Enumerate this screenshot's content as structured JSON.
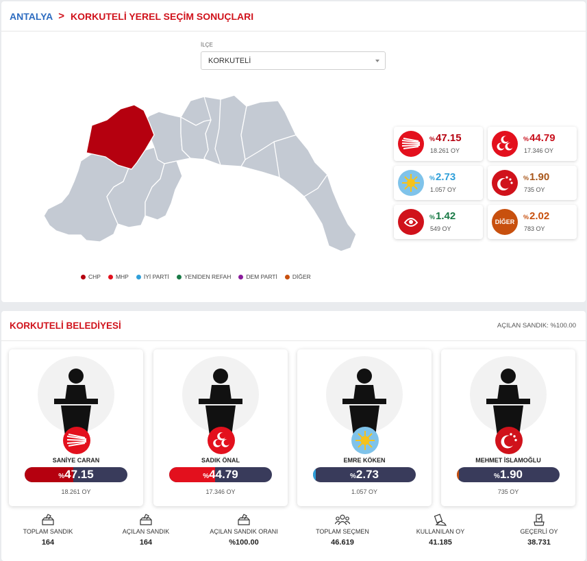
{
  "breadcrumb": {
    "root": "ANTALYA",
    "separator": ">",
    "current": "KORKUTELİ YEREL SEÇİM SONUÇLARI"
  },
  "ilce": {
    "label": "İLÇE",
    "selected": "KORKUTELİ"
  },
  "legend": [
    {
      "label": "CHP",
      "color": "#b5000f"
    },
    {
      "label": "MHP",
      "color": "#e3101d"
    },
    {
      "label": "İYİ PARTİ",
      "color": "#2f9fd9"
    },
    {
      "label": "YENİDEN REFAH",
      "color": "#197a46"
    },
    {
      "label": "DEM PARTİ",
      "color": "#8a1c9c"
    },
    {
      "label": "DİĞER",
      "color": "#c8500e"
    }
  ],
  "party_results": [
    {
      "party": "CHP",
      "percent_symbol": "%",
      "percent": "47.15",
      "votes": "18.261 OY",
      "color": "#b5000f",
      "icon": "chp-six-arrows-icon"
    },
    {
      "party": "MHP",
      "percent_symbol": "%",
      "percent": "44.79",
      "votes": "17.346 OY",
      "color": "#c8101c",
      "icon": "mhp-three-crescents-icon"
    },
    {
      "party": "İYİ PARTİ",
      "percent_symbol": "%",
      "percent": "2.73",
      "votes": "1.057 OY",
      "color": "#2f9fd9",
      "icon": "iyi-sun-icon"
    },
    {
      "party": "BBP",
      "percent_symbol": "%",
      "percent": "1.90",
      "votes": "735 OY",
      "color": "#a8571b",
      "icon": "crescent-stars-icon"
    },
    {
      "party": "YENİDEN REFAH",
      "percent_symbol": "%",
      "percent": "1.42",
      "votes": "549 OY",
      "color": "#197a46",
      "icon": "yeniden-refah-icon"
    },
    {
      "party": "DİĞER",
      "logo_text": "DİĞER",
      "percent_symbol": "%",
      "percent": "2.02",
      "votes": "783 OY",
      "color": "#c8500e",
      "icon": "diger-badge-icon"
    }
  ],
  "municipality": {
    "title": "KORKUTELİ BELEDİYESİ",
    "opened_boxes": "AÇILAN SANDIK: %100.00",
    "candidates": [
      {
        "name": "SANİYE CARAN",
        "percent_symbol": "%",
        "percent": "47.15",
        "share": 0.4715,
        "votes": "18.261 OY",
        "color": "#b5000f",
        "icon": "chp-six-arrows-icon"
      },
      {
        "name": "SADIK ÖNAL",
        "percent_symbol": "%",
        "percent": "44.79",
        "share": 0.4479,
        "votes": "17.346 OY",
        "color": "#e3101d",
        "icon": "mhp-three-crescents-icon"
      },
      {
        "name": "EMRE KÖKEN",
        "percent_symbol": "%",
        "percent": "2.73",
        "share": 0.0273,
        "votes": "1.057 OY",
        "color": "#2f9fd9",
        "icon": "iyi-sun-icon"
      },
      {
        "name": "MEHMET İSLAMOĞLU",
        "percent_symbol": "%",
        "percent": "1.90",
        "share": 0.019,
        "votes": "735 OY",
        "color": "#c8500e",
        "icon": "crescent-stars-icon"
      }
    ],
    "stats": [
      {
        "label": "TOPLAM SANDIK",
        "value": "164",
        "icon": "ballot-box-icon"
      },
      {
        "label": "AÇILAN SANDIK",
        "value": "164",
        "icon": "ballot-box-icon"
      },
      {
        "label": "AÇILAN SANDIK ORANI",
        "value": "%100.00",
        "icon": "ballot-box-icon"
      },
      {
        "label": "TOPLAM SEÇMEN",
        "value": "46.619",
        "icon": "people-icon"
      },
      {
        "label": "KULLANILAN OY",
        "value": "41.185",
        "icon": "vote-hand-icon"
      },
      {
        "label": "GEÇERLİ OY",
        "value": "38.731",
        "icon": "valid-vote-icon"
      }
    ]
  },
  "map": {
    "selected_district": "KORKUTELİ",
    "selected_color": "#b5000f",
    "other_color": "#c4cad3"
  }
}
